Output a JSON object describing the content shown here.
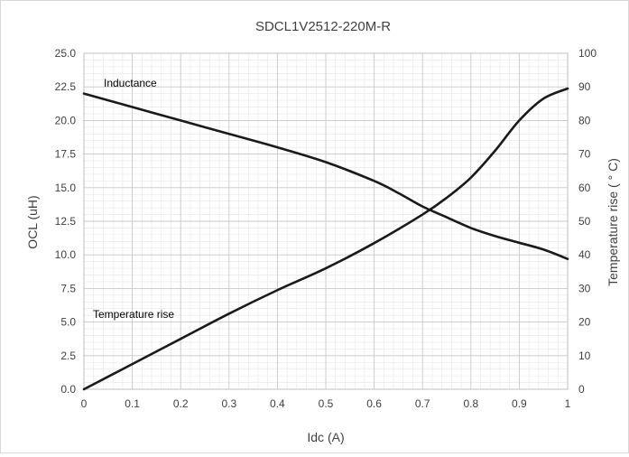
{
  "chart_data": {
    "type": "line",
    "title": "SDCL1V2512-220M-R",
    "xlabel": "Idc (A)",
    "ylabel_left": "OCL (uH)",
    "ylabel_right": "Temperature rise ( ° C)",
    "xlim": [
      0,
      1
    ],
    "ylim_left": [
      0,
      25
    ],
    "ylim_right": [
      0,
      100
    ],
    "x_ticks": [
      "0",
      "0.1",
      "0.2",
      "0.3",
      "0.4",
      "0.5",
      "0.6",
      "0.7",
      "0.8",
      "0.9",
      "1"
    ],
    "y_left_ticks": [
      "0.0",
      "2.5",
      "5.0",
      "7.5",
      "10.0",
      "12.5",
      "15.0",
      "17.5",
      "20.0",
      "22.5",
      "25.0"
    ],
    "y_right_ticks": [
      "0",
      "10",
      "20",
      "30",
      "40",
      "50",
      "60",
      "70",
      "80",
      "90",
      "100"
    ],
    "grid": true,
    "series": [
      {
        "name": "Inductance",
        "axis": "left",
        "color": "#1a1a1a",
        "x": [
          0,
          0.1,
          0.2,
          0.3,
          0.4,
          0.5,
          0.6,
          0.65,
          0.7,
          0.75,
          0.8,
          0.85,
          0.9,
          0.95,
          1.0
        ],
        "values": [
          22.0,
          21.0,
          20.0,
          19.0,
          18.0,
          16.9,
          15.5,
          14.6,
          13.6,
          12.8,
          12.0,
          11.4,
          10.9,
          10.4,
          9.7
        ]
      },
      {
        "name": "Temperature rise",
        "axis": "right",
        "color": "#1a1a1a",
        "x": [
          0,
          0.1,
          0.2,
          0.3,
          0.4,
          0.5,
          0.6,
          0.7,
          0.75,
          0.8,
          0.85,
          0.9,
          0.95,
          1.0
        ],
        "values": [
          0,
          7.5,
          15,
          22.5,
          29.5,
          36,
          43.5,
          52,
          57,
          63,
          71,
          80,
          86.5,
          89.5
        ]
      }
    ],
    "annotations": [
      "Inductance",
      "Temperature rise"
    ]
  }
}
